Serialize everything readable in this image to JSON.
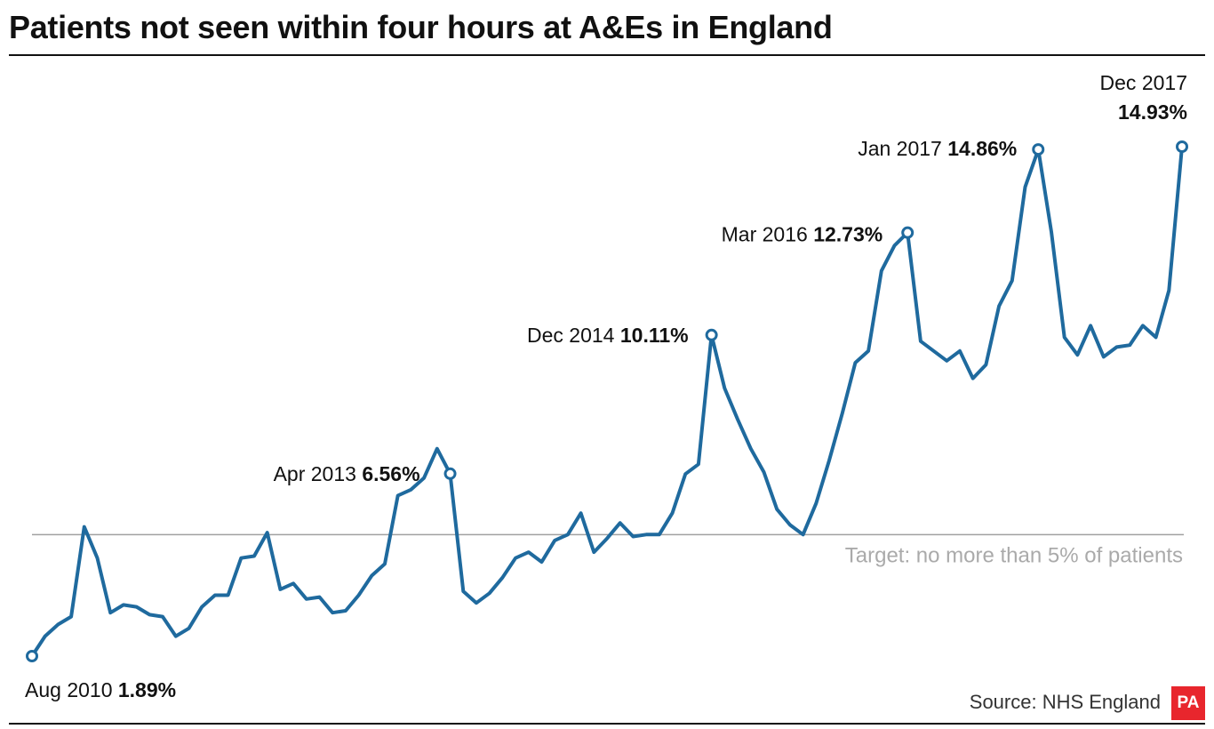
{
  "title": "Patients not seen within four hours at A&Es in England",
  "source": "Source: NHS England",
  "logo_text": "PA",
  "colors": {
    "line": "#1f6a9e",
    "target": "#a0a0a0",
    "target_label": "#aaaaaa",
    "logo": "#e8262d"
  },
  "chart_data": {
    "type": "line",
    "title": "Patients not seen within four hours at A&Es in England",
    "xlabel": "",
    "ylabel": "",
    "x": [
      "Aug 2010",
      "Sep 2010",
      "Oct 2010",
      "Nov 2010",
      "Dec 2010",
      "Jan 2011",
      "Feb 2011",
      "Mar 2011",
      "Apr 2011",
      "May 2011",
      "Jun 2011",
      "Jul 2011",
      "Aug 2011",
      "Sep 2011",
      "Oct 2011",
      "Nov 2011",
      "Dec 2011",
      "Jan 2012",
      "Feb 2012",
      "Mar 2012",
      "Apr 2012",
      "May 2012",
      "Jun 2012",
      "Jul 2012",
      "Aug 2012",
      "Sep 2012",
      "Oct 2012",
      "Nov 2012",
      "Dec 2012",
      "Jan 2013",
      "Feb 2013",
      "Mar 2013",
      "Apr 2013",
      "May 2013",
      "Jun 2013",
      "Jul 2013",
      "Aug 2013",
      "Sep 2013",
      "Oct 2013",
      "Nov 2013",
      "Dec 2013",
      "Jan 2014",
      "Feb 2014",
      "Mar 2014",
      "Apr 2014",
      "May 2014",
      "Jun 2014",
      "Jul 2014",
      "Aug 2014",
      "Sep 2014",
      "Oct 2014",
      "Nov 2014",
      "Dec 2014",
      "Jan 2015",
      "Feb 2015",
      "Mar 2015",
      "Apr 2015",
      "May 2015",
      "Jun 2015",
      "Jul 2015",
      "Aug 2015",
      "Sep 2015",
      "Oct 2015",
      "Nov 2015",
      "Dec 2015",
      "Jan 2016",
      "Feb 2016",
      "Mar 2016",
      "Apr 2016",
      "May 2016",
      "Jun 2016",
      "Jul 2016",
      "Aug 2016",
      "Sep 2016",
      "Oct 2016",
      "Nov 2016",
      "Dec 2016",
      "Jan 2017",
      "Feb 2017",
      "Mar 2017",
      "Apr 2017",
      "May 2017",
      "Jun 2017",
      "Jul 2017",
      "Aug 2017",
      "Sep 2017",
      "Oct 2017",
      "Nov 2017",
      "Dec 2017"
    ],
    "series": [
      {
        "values": [
          1.89,
          2.4,
          2.7,
          2.9,
          5.2,
          4.4,
          3.0,
          3.2,
          3.15,
          2.95,
          2.9,
          2.4,
          2.6,
          3.15,
          3.45,
          3.45,
          4.4,
          4.45,
          5.05,
          3.6,
          3.75,
          3.35,
          3.4,
          3.0,
          3.05,
          3.45,
          3.95,
          4.25,
          6.0,
          6.15,
          6.45,
          7.2,
          6.56,
          3.55,
          3.25,
          3.5,
          3.9,
          4.4,
          4.55,
          4.3,
          4.85,
          5.0,
          5.55,
          4.55,
          4.9,
          5.3,
          4.95,
          5.0,
          5.0,
          5.55,
          6.55,
          6.8,
          10.11,
          8.75,
          7.95,
          7.2,
          6.6,
          5.65,
          5.25,
          5.0,
          5.8,
          6.9,
          8.1,
          9.4,
          9.7,
          11.75,
          12.4,
          12.73,
          9.95,
          9.7,
          9.45,
          9.7,
          9.0,
          9.35,
          10.85,
          11.5,
          13.9,
          14.86,
          12.75,
          10.05,
          9.6,
          10.35,
          9.55,
          9.8,
          9.85,
          10.35,
          10.05,
          11.25,
          14.93
        ]
      }
    ],
    "ylim": [
      1.5,
      15.5
    ],
    "grid": false,
    "reference_line": {
      "value": 5,
      "label": "Target: no more than 5% of patients"
    },
    "annotations": [
      {
        "index": 0,
        "label": "Aug 2010",
        "value_label": "1.89%"
      },
      {
        "index": 32,
        "label": "Apr 2013",
        "value_label": "6.56%"
      },
      {
        "index": 52,
        "label": "Dec 2014",
        "value_label": "10.11%"
      },
      {
        "index": 67,
        "label": "Mar 2016",
        "value_label": "12.73%"
      },
      {
        "index": 77,
        "label": "Jan 2017",
        "value_label": "14.86%"
      },
      {
        "index": 88,
        "label": "Dec 2017",
        "value_label": "14.93%"
      }
    ]
  }
}
